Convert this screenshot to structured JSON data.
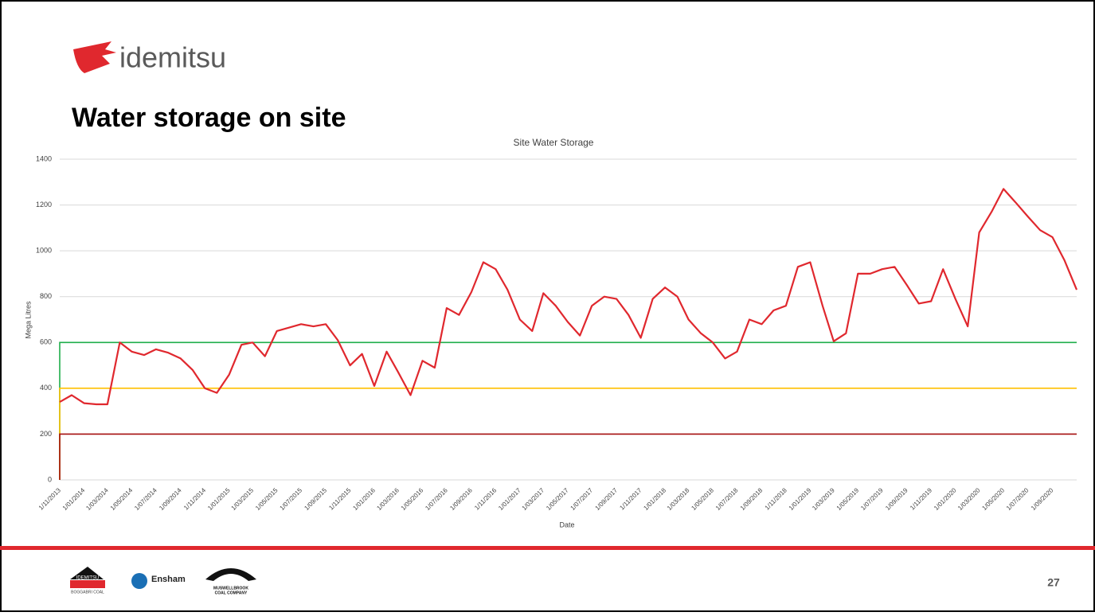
{
  "header": {
    "logo": "idemitsu",
    "title": "Water storage on site"
  },
  "chart_data": {
    "type": "line",
    "title": "Site Water Storage",
    "x_label": "Date",
    "y_label": "Mega Litres",
    "xlim": [
      "1/11/2013",
      "1/11/2020"
    ],
    "xticks": [
      "1/11/2013",
      "1/01/2014",
      "1/03/2014",
      "1/05/2014",
      "1/07/2014",
      "1/09/2014",
      "1/11/2014",
      "1/01/2015",
      "1/03/2015",
      "1/05/2015",
      "1/07/2015",
      "1/09/2015",
      "1/11/2015",
      "1/01/2016",
      "1/03/2016",
      "1/05/2016",
      "1/07/2016",
      "1/09/2016",
      "1/11/2016",
      "1/01/2017",
      "1/03/2017",
      "1/05/2017",
      "1/07/2017",
      "1/09/2017",
      "1/11/2017",
      "1/01/2018",
      "1/03/2018",
      "1/05/2018",
      "1/07/2018",
      "1/09/2018",
      "1/11/2018",
      "1/01/2019",
      "1/03/2019",
      "1/05/2019",
      "1/07/2019",
      "1/09/2019",
      "1/11/2019",
      "1/01/2020",
      "1/03/2020",
      "1/05/2020",
      "1/07/2020",
      "1/09/2020"
    ],
    "ylim": [
      0,
      1400
    ],
    "yticks": [
      0,
      200,
      400,
      600,
      800,
      1000,
      1200,
      1400
    ],
    "grid": true,
    "reference_lines": [
      {
        "value": 600,
        "color": "#1fae4b"
      },
      {
        "value": 400,
        "color": "#ffc000"
      },
      {
        "value": 200,
        "color": "#a50f0f"
      }
    ],
    "series": [
      {
        "color": "#e0282e",
        "x": [
          "1/11/2013",
          "1/12/2013",
          "1/01/2014",
          "1/02/2014",
          "1/03/2014",
          "1/04/2014",
          "1/05/2014",
          "1/06/2014",
          "1/07/2014",
          "1/08/2014",
          "1/09/2014",
          "1/10/2014",
          "1/11/2014",
          "1/12/2014",
          "1/01/2015",
          "1/02/2015",
          "1/03/2015",
          "1/04/2015",
          "1/05/2015",
          "1/06/2015",
          "1/07/2015",
          "1/08/2015",
          "1/09/2015",
          "1/10/2015",
          "1/11/2015",
          "1/12/2015",
          "1/01/2016",
          "1/02/2016",
          "1/03/2016",
          "1/04/2016",
          "1/05/2016",
          "1/06/2016",
          "1/07/2016",
          "1/08/2016",
          "1/09/2016",
          "1/10/2016",
          "1/11/2016",
          "1/12/2016",
          "1/01/2017",
          "1/02/2017",
          "1/03/2017",
          "1/04/2017",
          "1/05/2017",
          "1/06/2017",
          "1/07/2017",
          "1/08/2017",
          "1/09/2017",
          "1/10/2017",
          "1/11/2017",
          "1/12/2017",
          "1/01/2018",
          "1/02/2018",
          "1/03/2018",
          "1/04/2018",
          "1/05/2018",
          "1/06/2018",
          "1/07/2018",
          "1/08/2018",
          "1/09/2018",
          "1/10/2018",
          "1/11/2018",
          "1/12/2018",
          "1/01/2019",
          "1/02/2019",
          "1/03/2019",
          "1/04/2019",
          "1/05/2019",
          "1/06/2019",
          "1/07/2019",
          "1/08/2019",
          "1/09/2019",
          "1/10/2019",
          "1/11/2019",
          "1/12/2019",
          "1/01/2020",
          "1/02/2020",
          "1/03/2020",
          "1/04/2020",
          "1/05/2020",
          "1/06/2020",
          "1/07/2020",
          "1/08/2020",
          "1/09/2020",
          "1/10/2020",
          "1/11/2020"
        ],
        "values": [
          340,
          370,
          335,
          330,
          330,
          600,
          560,
          545,
          570,
          555,
          530,
          480,
          400,
          380,
          460,
          590,
          600,
          540,
          650,
          665,
          680,
          670,
          680,
          610,
          500,
          550,
          410,
          560,
          470,
          370,
          520,
          490,
          750,
          720,
          820,
          950,
          920,
          830,
          700,
          650,
          815,
          760,
          690,
          630,
          760,
          800,
          790,
          720,
          620,
          790,
          840,
          800,
          700,
          640,
          600,
          530,
          560,
          700,
          680,
          740,
          760,
          930,
          950,
          760,
          605,
          640,
          900,
          900,
          920,
          930,
          850,
          770,
          780,
          920,
          790,
          670,
          1080,
          1170,
          1270,
          1210,
          1150,
          1090,
          1060,
          960,
          830
        ]
      }
    ]
  },
  "footer": {
    "logo1": "IDEMITSU",
    "logo1_sub": "BOGGABRI COAL",
    "logo2": "Ensham",
    "logo3a": "MUSWELLBROOK",
    "logo3b": "COAL COMPANY",
    "page": "27"
  }
}
